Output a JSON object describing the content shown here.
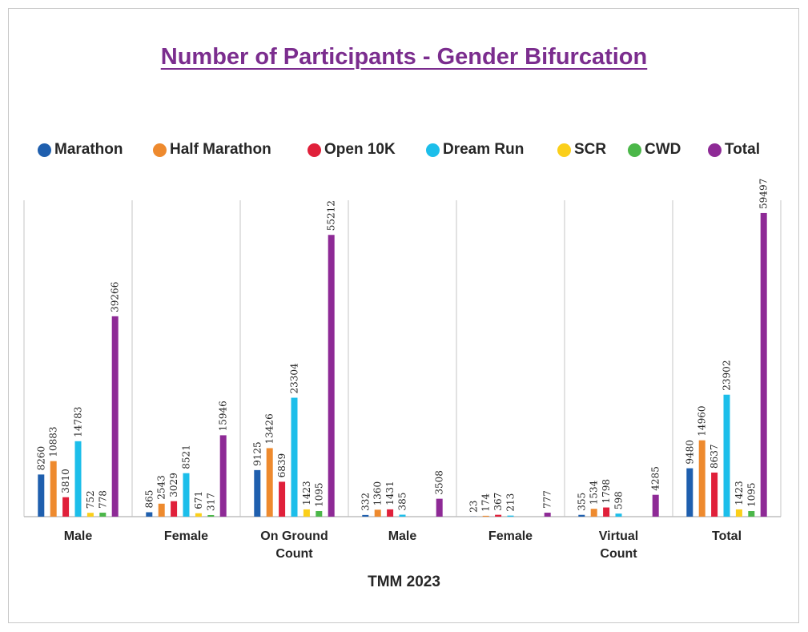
{
  "chart_data": {
    "type": "bar",
    "title": "Number of Participants - Gender Bifurcation",
    "xlabel": "TMM 2023",
    "ylabel": "",
    "ylim": [
      0,
      62000
    ],
    "grid": false,
    "legend_position": "top",
    "categories": [
      [
        "Male"
      ],
      [
        "Female"
      ],
      [
        "On Ground",
        "Count"
      ],
      [
        "Male"
      ],
      [
        "Female"
      ],
      [
        "Virtual",
        "Count"
      ],
      [
        "Total"
      ]
    ],
    "series": [
      {
        "name": "Marathon",
        "color": "#1f5fae",
        "values": [
          8260,
          865,
          9125,
          332,
          23,
          355,
          9480
        ]
      },
      {
        "name": "Half Marathon",
        "color": "#ee8a2e",
        "values": [
          10883,
          2543,
          13426,
          1360,
          174,
          1534,
          14960
        ]
      },
      {
        "name": "Open 10K",
        "color": "#e0203a",
        "values": [
          3810,
          3029,
          6839,
          1431,
          367,
          1798,
          8637
        ]
      },
      {
        "name": "Dream Run",
        "color": "#1cbeea",
        "values": [
          14783,
          8521,
          23304,
          385,
          213,
          598,
          23902
        ]
      },
      {
        "name": "SCR",
        "color": "#fbcf1a",
        "values": [
          752,
          671,
          1423,
          null,
          null,
          null,
          1423
        ]
      },
      {
        "name": "CWD",
        "color": "#4bb749",
        "values": [
          778,
          317,
          1095,
          null,
          null,
          null,
          1095
        ]
      },
      {
        "name": "Total",
        "color": "#8e2a96",
        "values": [
          39266,
          15946,
          55212,
          3508,
          777,
          4285,
          59497
        ]
      }
    ]
  }
}
